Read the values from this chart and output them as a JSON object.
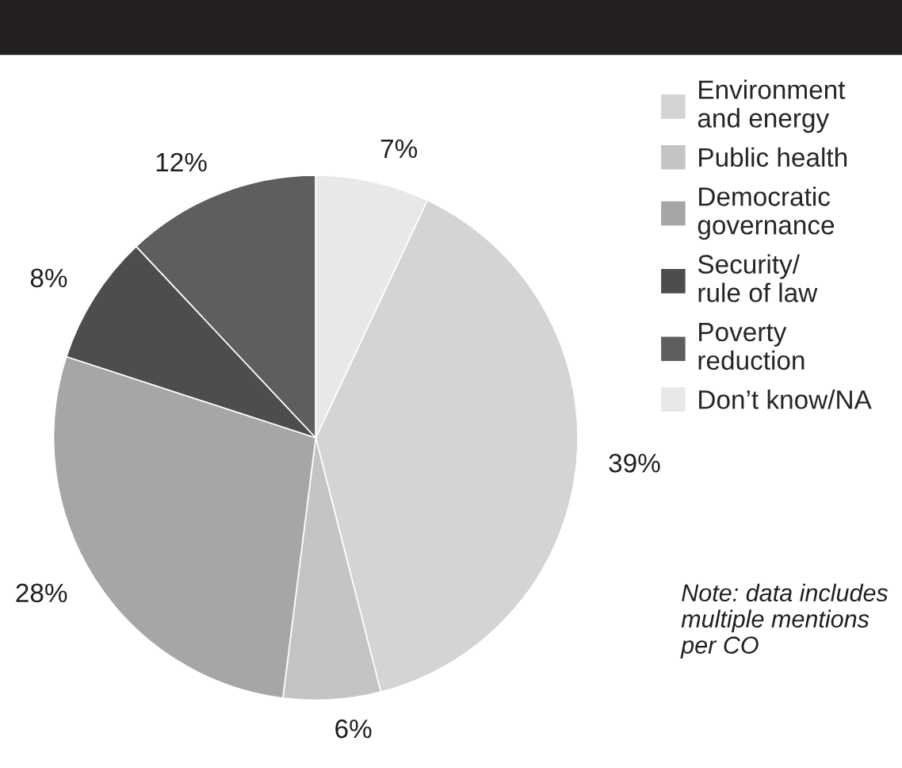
{
  "chart_data": {
    "type": "pie",
    "categories": [
      "Environment\nand energy",
      "Public health",
      "Democratic\ngovernance",
      "Security/\nrule of law",
      "Poverty\nreduction",
      "Don’t know/NA"
    ],
    "values": [
      39,
      6,
      28,
      8,
      12,
      7
    ],
    "value_labels": [
      "39%",
      "6%",
      "28%",
      "8%",
      "12%",
      "7%"
    ],
    "colors": [
      "#d4d4d4",
      "#c4c4c4",
      "#a6a6a6",
      "#4d4d4d",
      "#5e5e5e",
      "#e8e8e8"
    ],
    "legend": "right",
    "annotations": [
      "Note: data includes\nmultiple mentions\nper CO"
    ]
  }
}
